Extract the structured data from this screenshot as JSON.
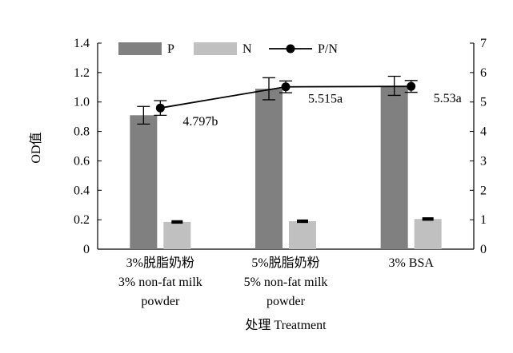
{
  "chart_data": {
    "type": "bar",
    "categories": [
      [
        "3%脱脂奶粉",
        "3% non-fat milk",
        "powder"
      ],
      [
        "5%脱脂奶粉",
        "5% non-fat milk",
        "powder"
      ],
      [
        "3% BSA"
      ]
    ],
    "series": [
      {
        "name": "P",
        "color": "#808080",
        "values": [
          0.91,
          1.09,
          1.11
        ],
        "errors": [
          0.06,
          0.075,
          0.065
        ]
      },
      {
        "name": "N",
        "color": "#c0c0c0",
        "values": [
          0.185,
          0.19,
          0.205
        ],
        "errors": [
          0.005,
          0.005,
          0.005
        ]
      }
    ],
    "line_series": {
      "name": "P/N",
      "color": "#000000",
      "axis": "right",
      "values": [
        4.797,
        5.515,
        5.53
      ],
      "errors": [
        0.25,
        0.2,
        0.2
      ],
      "labels": [
        "4.797b",
        "5.515a",
        "5.53a"
      ]
    },
    "xlabel": "处理 Treatment",
    "ylabel": "OD值",
    "ylim": [
      0,
      1.4
    ],
    "yticks": [
      "0",
      "0.2",
      "0.4",
      "0.6",
      "0.8",
      "1.0",
      "1.2",
      "1.4"
    ],
    "y2lim": [
      0,
      7
    ],
    "y2ticks": [
      "0",
      "1",
      "2",
      "3",
      "4",
      "5",
      "6",
      "7"
    ],
    "grid": false,
    "legend_position": "top"
  }
}
